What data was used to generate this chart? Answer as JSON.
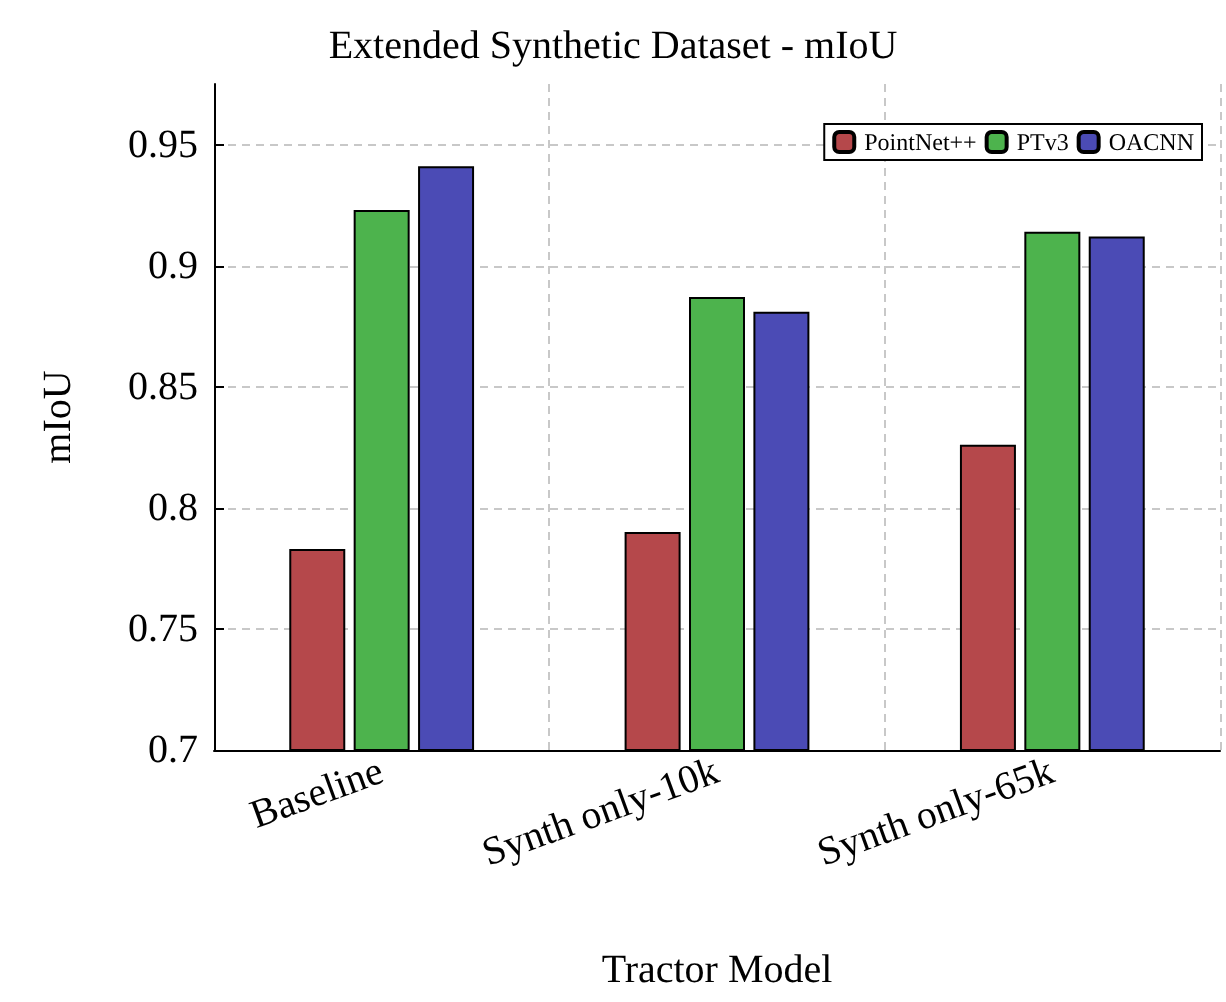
{
  "chart_data": {
    "type": "bar",
    "title": "Extended Synthetic Dataset - mIoU",
    "xlabel": "Tractor Model",
    "ylabel": "mIoU",
    "categories": [
      "Baseline",
      "Synth only-10k",
      "Synth only-65k"
    ],
    "series": [
      {
        "name": "PointNet++",
        "color": "#b5484b",
        "values": [
          0.783,
          0.79,
          0.826
        ]
      },
      {
        "name": "PTv3",
        "color": "#4db34d",
        "values": [
          0.923,
          0.887,
          0.914
        ]
      },
      {
        "name": "OACNN",
        "color": "#4b4bb5",
        "values": [
          0.941,
          0.881,
          0.912
        ]
      }
    ],
    "ylim": [
      0.7,
      0.975
    ],
    "yticks": [
      0.7,
      0.75,
      0.8,
      0.85,
      0.9,
      0.95
    ],
    "grid": true,
    "legend": "top right"
  }
}
